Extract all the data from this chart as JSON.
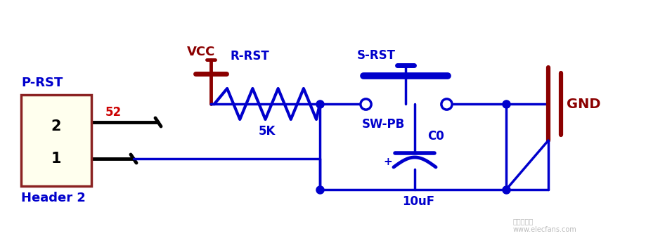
{
  "bg_color": "#ffffff",
  "blue": "#0000cc",
  "dark_red": "#8B0000",
  "red_label": "#cc0000",
  "black": "#000000",
  "light_yellow": "#ffffee",
  "figsize": [
    9.2,
    3.56
  ],
  "dpi": 100,
  "labels": {
    "vcc": {
      "text": "VCC",
      "color": "#8B0000",
      "fontsize": 13
    },
    "r_rst": {
      "text": "R-RST",
      "color": "#0000cc",
      "fontsize": 12
    },
    "p_rst": {
      "text": "P-RST",
      "color": "#0000cc",
      "fontsize": 13
    },
    "header2": {
      "text": "Header 2",
      "color": "#0000cc",
      "fontsize": 13
    },
    "gnd": {
      "text": "GND",
      "color": "#8B0000",
      "fontsize": 14
    },
    "s_rst": {
      "text": "S-RST",
      "color": "#0000cc",
      "fontsize": 12
    },
    "sw_pb": {
      "text": "SW-PB",
      "color": "#0000cc",
      "fontsize": 12
    },
    "c0": {
      "text": "C0",
      "color": "#0000cc",
      "fontsize": 12
    },
    "cap_plus": {
      "text": "+",
      "color": "#0000cc",
      "fontsize": 11
    },
    "cap_value": {
      "text": "10uF",
      "color": "#0000cc",
      "fontsize": 12
    },
    "res_value": {
      "text": "5K",
      "color": "#0000cc",
      "fontsize": 12
    },
    "net_52": {
      "text": "52",
      "color": "#cc0000",
      "fontsize": 12
    },
    "pin2": {
      "text": "2",
      "color": "#000000",
      "fontsize": 15
    },
    "pin1": {
      "text": "1",
      "color": "#000000",
      "fontsize": 15
    }
  },
  "watermark": {
    "text": "elecfans",
    "fontsize": 8
  }
}
